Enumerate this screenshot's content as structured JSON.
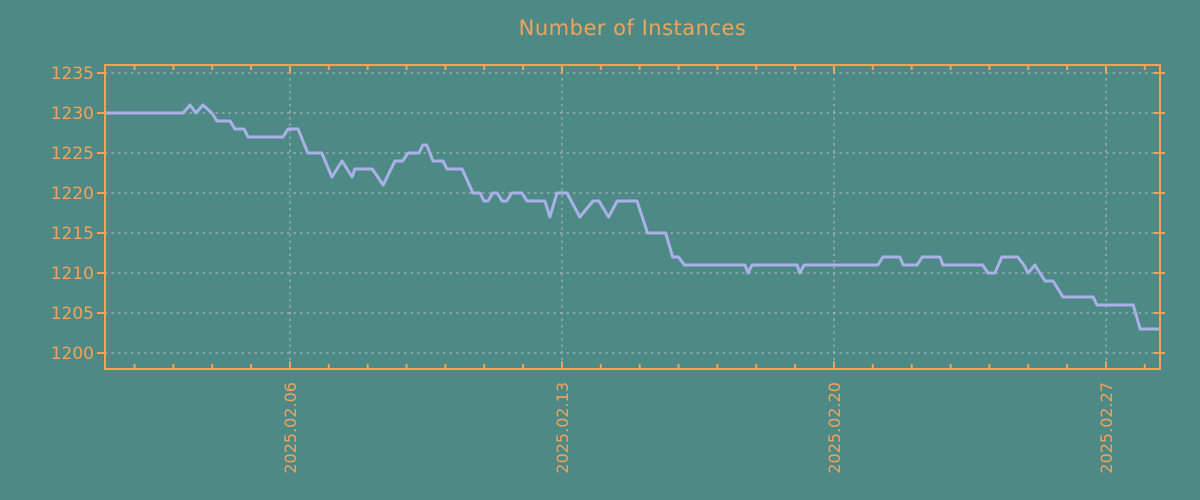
{
  "colors": {
    "background": "#4e8a85",
    "accent": "#f2a359",
    "line": "#aab0e8",
    "grid": "#bdbdbd"
  },
  "chart_data": {
    "type": "line",
    "title": "Number of Instances",
    "xlabel": "",
    "ylabel": "",
    "grid": true,
    "legend": "none",
    "x_axis": {
      "unit": "date",
      "range_days": [
        1.24,
        28.39
      ],
      "major_tick_days": [
        6,
        13,
        20,
        27
      ],
      "major_tick_labels": [
        "2025.02.06",
        "2025.02.13",
        "2025.02.20",
        "2025.02.27"
      ],
      "minor_tick_interval_days": 1
    },
    "y_axis": {
      "range": [
        1198,
        1236
      ],
      "tick_values": [
        1200,
        1205,
        1210,
        1215,
        1220,
        1225,
        1230,
        1235
      ],
      "tick_labels": [
        "1200",
        "1205",
        "1210",
        "1215",
        "1220",
        "1225",
        "1230",
        "1235"
      ]
    },
    "series": [
      {
        "name": "instances",
        "color": "#aab0e8",
        "points_day_value": [
          [
            1.24,
            1230
          ],
          [
            3.25,
            1230
          ],
          [
            3.43,
            1231
          ],
          [
            3.58,
            1230
          ],
          [
            3.76,
            1231
          ],
          [
            3.99,
            1230
          ],
          [
            4.12,
            1229
          ],
          [
            4.46,
            1229
          ],
          [
            4.58,
            1228
          ],
          [
            4.82,
            1228
          ],
          [
            4.92,
            1227
          ],
          [
            5.82,
            1227
          ],
          [
            5.95,
            1228
          ],
          [
            6.21,
            1228
          ],
          [
            6.46,
            1225
          ],
          [
            6.82,
            1225
          ],
          [
            7.08,
            1222
          ],
          [
            7.34,
            1224
          ],
          [
            7.6,
            1222
          ],
          [
            7.67,
            1223
          ],
          [
            8.12,
            1223
          ],
          [
            8.4,
            1221
          ],
          [
            8.7,
            1224
          ],
          [
            8.9,
            1224
          ],
          [
            9.04,
            1225
          ],
          [
            9.32,
            1225
          ],
          [
            9.42,
            1226
          ],
          [
            9.52,
            1226
          ],
          [
            9.68,
            1224
          ],
          [
            9.94,
            1224
          ],
          [
            10.04,
            1223
          ],
          [
            10.43,
            1223
          ],
          [
            10.71,
            1220
          ],
          [
            10.89,
            1220
          ],
          [
            10.99,
            1219
          ],
          [
            11.1,
            1219
          ],
          [
            11.22,
            1220
          ],
          [
            11.33,
            1220
          ],
          [
            11.46,
            1219
          ],
          [
            11.58,
            1219
          ],
          [
            11.71,
            1220
          ],
          [
            11.97,
            1220
          ],
          [
            12.1,
            1219
          ],
          [
            12.56,
            1219
          ],
          [
            12.69,
            1217
          ],
          [
            12.87,
            1220
          ],
          [
            13.13,
            1220
          ],
          [
            13.46,
            1217
          ],
          [
            13.8,
            1219
          ],
          [
            13.95,
            1219
          ],
          [
            14.2,
            1217
          ],
          [
            14.42,
            1219
          ],
          [
            14.93,
            1219
          ],
          [
            15.2,
            1215
          ],
          [
            15.67,
            1215
          ],
          [
            15.85,
            1212
          ],
          [
            16.0,
            1212
          ],
          [
            16.15,
            1211
          ],
          [
            17.71,
            1211
          ],
          [
            17.79,
            1210
          ],
          [
            17.89,
            1211
          ],
          [
            19.05,
            1211
          ],
          [
            19.12,
            1210
          ],
          [
            19.23,
            1211
          ],
          [
            21.13,
            1211
          ],
          [
            21.26,
            1212
          ],
          [
            21.7,
            1212
          ],
          [
            21.78,
            1211
          ],
          [
            22.14,
            1211
          ],
          [
            22.27,
            1212
          ],
          [
            22.73,
            1212
          ],
          [
            22.8,
            1211
          ],
          [
            23.83,
            1211
          ],
          [
            23.96,
            1210
          ],
          [
            24.14,
            1210
          ],
          [
            24.32,
            1212
          ],
          [
            24.73,
            1212
          ],
          [
            24.89,
            1211
          ],
          [
            24.99,
            1210
          ],
          [
            25.17,
            1211
          ],
          [
            25.43,
            1209
          ],
          [
            25.64,
            1209
          ],
          [
            25.89,
            1207
          ],
          [
            26.67,
            1207
          ],
          [
            26.77,
            1206
          ],
          [
            27.7,
            1206
          ],
          [
            27.88,
            1203
          ],
          [
            28.39,
            1203
          ]
        ]
      }
    ]
  }
}
